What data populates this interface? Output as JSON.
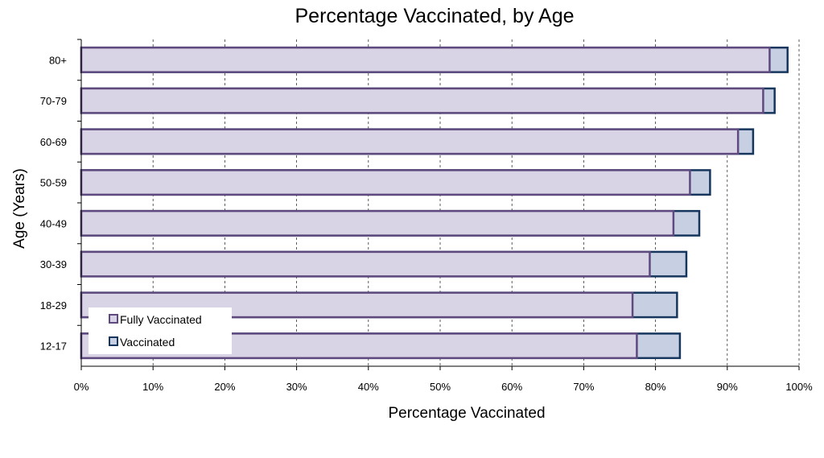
{
  "chart_data": {
    "type": "bar",
    "orientation": "horizontal",
    "title": "Percentage Vaccinated, by Age",
    "xlabel": "Percentage Vaccinated",
    "ylabel": "Age (Years)",
    "xlim": [
      0,
      100
    ],
    "x_ticks": [
      "0%",
      "10%",
      "20%",
      "30%",
      "40%",
      "50%",
      "60%",
      "70%",
      "80%",
      "90%",
      "100%"
    ],
    "categories": [
      "80+",
      "70-79",
      "60-69",
      "50-59",
      "40-49",
      "30-39",
      "18-29",
      "12-17"
    ],
    "series": [
      {
        "name": "Fully Vaccinated",
        "values": [
          95.9,
          95.0,
          91.5,
          84.8,
          82.5,
          79.2,
          76.8,
          77.4
        ],
        "color": "#D9D3E6",
        "edge": "#5E4A7E"
      },
      {
        "name": "Vaccinated",
        "values": [
          98.4,
          96.6,
          93.6,
          87.6,
          86.1,
          84.3,
          83.0,
          83.4
        ],
        "color": "#C7CFE3",
        "edge": "#17365D"
      }
    ],
    "grid": "vertical dashed",
    "legend_position": "bottom-left"
  }
}
